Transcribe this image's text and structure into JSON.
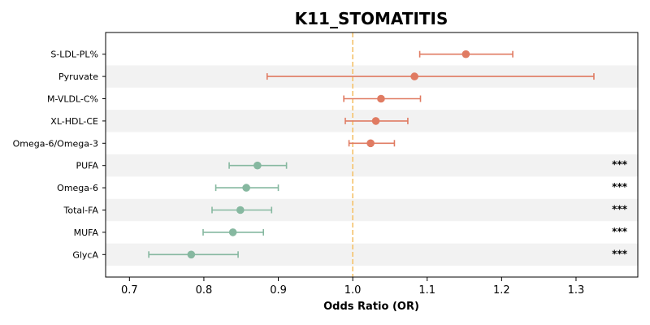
{
  "chart_data": {
    "type": "forest",
    "title": "K11_STOMATITIS",
    "xlabel": "Odds Ratio (OR)",
    "xlim": [
      0.668,
      1.383
    ],
    "xticks": [
      "0.7",
      "0.8",
      "0.9",
      "1.0",
      "1.1",
      "1.2",
      "1.3"
    ],
    "reference_line": 1.0,
    "reference_line_color": "#f5c26b",
    "alternating_row_shading": true,
    "colors": {
      "increased": "#e07b62",
      "decreased": "#86b8a0",
      "row_shade": "#f2f2f2"
    },
    "rows": [
      {
        "label": "S-LDL-PL%",
        "or": 1.152,
        "ci_low": 1.09,
        "ci_high": 1.215,
        "significance": ""
      },
      {
        "label": "Pyruvate",
        "or": 1.083,
        "ci_low": 0.885,
        "ci_high": 1.324,
        "significance": ""
      },
      {
        "label": "M-VLDL-C%",
        "or": 1.038,
        "ci_low": 0.988,
        "ci_high": 1.091,
        "significance": ""
      },
      {
        "label": "XL-HDL-CE",
        "or": 1.031,
        "ci_low": 0.99,
        "ci_high": 1.074,
        "significance": ""
      },
      {
        "label": "Omega-6/Omega-3",
        "or": 1.024,
        "ci_low": 0.995,
        "ci_high": 1.056,
        "significance": ""
      },
      {
        "label": "PUFA",
        "or": 0.872,
        "ci_low": 0.834,
        "ci_high": 0.911,
        "significance": "***"
      },
      {
        "label": "Omega-6",
        "or": 0.857,
        "ci_low": 0.816,
        "ci_high": 0.9,
        "significance": "***"
      },
      {
        "label": "Total-FA",
        "or": 0.849,
        "ci_low": 0.811,
        "ci_high": 0.891,
        "significance": "***"
      },
      {
        "label": "MUFA",
        "or": 0.839,
        "ci_low": 0.799,
        "ci_high": 0.88,
        "significance": "***"
      },
      {
        "label": "GlycA",
        "or": 0.783,
        "ci_low": 0.726,
        "ci_high": 0.846,
        "significance": "***"
      }
    ]
  }
}
